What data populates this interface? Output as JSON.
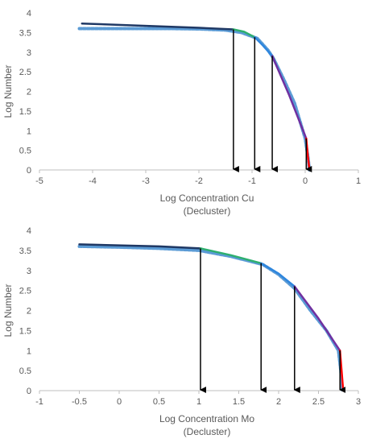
{
  "chart_data": [
    {
      "type": "line",
      "title": "",
      "xlabel": "Log Concentration Cu",
      "xlabel2": "(Decluster)",
      "ylabel": "Log Number",
      "xlim": [
        -5,
        1
      ],
      "ylim": [
        0,
        4
      ],
      "xticks": [
        "-5",
        "-4",
        "-3",
        "-2",
        "-1",
        "0",
        "1"
      ],
      "yticks": [
        "0",
        "0.5",
        "1",
        "1.5",
        "2",
        "2.5",
        "3",
        "3.5",
        "4"
      ],
      "grid": false,
      "colors": {
        "data": "#5B9BD5",
        "seg1": "#1F3864",
        "seg2": "#2EAF6F",
        "seg3": "#2E86DE",
        "seg4": "#7030A0",
        "seg5": "#FF0000",
        "arrow": "#000000"
      },
      "series": [
        {
          "values": [
            [
              -4.25,
              3.6
            ],
            [
              -4.15,
              3.6
            ],
            [
              -2.9,
              3.6
            ],
            [
              -2.5,
              3.6
            ],
            [
              -2.0,
              3.59
            ],
            [
              -1.5,
              3.56
            ],
            [
              -1.2,
              3.5
            ],
            [
              -0.9,
              3.35
            ],
            [
              -0.7,
              3.05
            ],
            [
              -0.6,
              2.85
            ],
            [
              -0.4,
              2.3
            ],
            [
              -0.2,
              1.7
            ],
            [
              0.0,
              0.8
            ],
            [
              0.05,
              0.35
            ],
            [
              0.08,
              0.0
            ]
          ]
        },
        {
          "values": [
            [
              -4.2,
              3.73
            ],
            [
              -2.0,
              3.62
            ],
            [
              -1.35,
              3.58
            ]
          ]
        },
        {
          "values": [
            [
              -1.35,
              3.58
            ],
            [
              -1.15,
              3.52
            ],
            [
              -0.95,
              3.38
            ]
          ]
        },
        {
          "values": [
            [
              -0.95,
              3.38
            ],
            [
              -0.8,
              3.18
            ],
            [
              -0.62,
              2.9
            ]
          ]
        },
        {
          "values": [
            [
              -0.62,
              2.9
            ],
            [
              -0.3,
              1.9
            ],
            [
              0.02,
              0.8
            ]
          ]
        },
        {
          "values": [
            [
              0.02,
              0.8
            ],
            [
              0.05,
              0.35
            ],
            [
              0.08,
              0.0
            ]
          ]
        }
      ],
      "arrows": [
        [
          -1.35,
          3.58
        ],
        [
          -0.95,
          3.38
        ],
        [
          -0.62,
          2.9
        ],
        [
          0.02,
          0.8
        ]
      ]
    },
    {
      "type": "line",
      "title": "",
      "xlabel": "Log Concentration Mo",
      "xlabel2": "(Decluster)",
      "ylabel": "Log Number",
      "xlim": [
        -1,
        3
      ],
      "ylim": [
        0,
        4
      ],
      "xticks": [
        "-1",
        "-0.5",
        "0",
        "0.5",
        "1",
        "1.5",
        "2",
        "2.5",
        "3"
      ],
      "yticks": [
        "0",
        "0.5",
        "1",
        "1.5",
        "2",
        "2.5",
        "3",
        "3.5",
        "4"
      ],
      "grid": false,
      "colors": {
        "data": "#5B9BD5",
        "seg1": "#1F3864",
        "seg2": "#2EAF6F",
        "seg3": "#2E86DE",
        "seg4": "#7030A0",
        "seg5": "#FF0000",
        "arrow": "#000000"
      },
      "series": [
        {
          "values": [
            [
              -0.5,
              3.6
            ],
            [
              0.0,
              3.58
            ],
            [
              0.5,
              3.55
            ],
            [
              1.0,
              3.5
            ],
            [
              1.4,
              3.35
            ],
            [
              1.8,
              3.15
            ],
            [
              2.0,
              2.9
            ],
            [
              2.2,
              2.55
            ],
            [
              2.4,
              2.0
            ],
            [
              2.6,
              1.5
            ],
            [
              2.75,
              1.0
            ],
            [
              2.78,
              0.5
            ],
            [
              2.8,
              0.0
            ]
          ]
        },
        {
          "values": [
            [
              -0.5,
              3.65
            ],
            [
              0.5,
              3.6
            ],
            [
              1.02,
              3.55
            ]
          ]
        },
        {
          "values": [
            [
              1.02,
              3.55
            ],
            [
              1.4,
              3.38
            ],
            [
              1.78,
              3.18
            ]
          ]
        },
        {
          "values": [
            [
              1.78,
              3.18
            ],
            [
              2.0,
              2.92
            ],
            [
              2.2,
              2.6
            ]
          ]
        },
        {
          "values": [
            [
              2.2,
              2.6
            ],
            [
              2.5,
              1.8
            ],
            [
              2.77,
              1.0
            ]
          ]
        },
        {
          "values": [
            [
              2.77,
              1.0
            ],
            [
              2.79,
              0.5
            ],
            [
              2.81,
              0.0
            ]
          ]
        }
      ],
      "arrows": [
        [
          1.02,
          3.55
        ],
        [
          1.78,
          3.18
        ],
        [
          2.2,
          2.6
        ],
        [
          2.77,
          1.0
        ]
      ]
    }
  ]
}
